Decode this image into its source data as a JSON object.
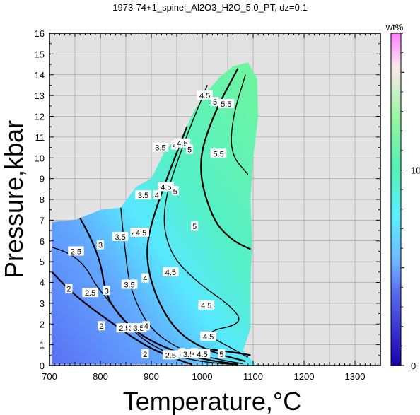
{
  "chart_data": {
    "type": "contour",
    "title": "1973-74+1_spinel_Al2O3_H2O_5.0_PT, dz=0.1",
    "xlabel": "Temperature,°C",
    "ylabel": "Pressure,kbar",
    "xlim": [
      700,
      1350
    ],
    "ylim": [
      0,
      16
    ],
    "x_ticks": [
      700,
      800,
      900,
      1000,
      1100,
      1200,
      1300
    ],
    "y_ticks": [
      0,
      1,
      2,
      3,
      4,
      5,
      6,
      7,
      8,
      9,
      10,
      11,
      12,
      13,
      14,
      15,
      16
    ],
    "grid": true,
    "colorbar": {
      "label": "wt%",
      "min": 0,
      "max": 17,
      "ticks": [
        0,
        10
      ],
      "colors": [
        "#1a00b0",
        "#5a6cf0",
        "#6fb8ff",
        "#58f0ff",
        "#55f0b0",
        "#7af59a",
        "#ffe6f0",
        "#ff80ff"
      ]
    },
    "field_boundary": [
      [
        705,
        0.05
      ],
      [
        705,
        6.9
      ],
      [
        720,
        6.95
      ],
      [
        750,
        7.0
      ],
      [
        800,
        7.5
      ],
      [
        840,
        7.6
      ],
      [
        870,
        8.6
      ],
      [
        900,
        9.0
      ],
      [
        930,
        10.5
      ],
      [
        960,
        11.0
      ],
      [
        985,
        12.3
      ],
      [
        1010,
        13.2
      ],
      [
        1035,
        13.9
      ],
      [
        1060,
        14.4
      ],
      [
        1090,
        14.6
      ],
      [
        1108,
        13.8
      ],
      [
        1110,
        12.0
      ],
      [
        1100,
        10.0
      ],
      [
        1095,
        8.0
      ],
      [
        1098,
        6.0
      ],
      [
        1095,
        4.0
      ],
      [
        1095,
        1.8
      ],
      [
        1080,
        0.7
      ],
      [
        1105,
        0.05
      ]
    ],
    "contours": [
      {
        "level": 2,
        "points": [
          [
            705,
            4.5
          ],
          [
            740,
            3.6
          ],
          [
            780,
            2.8
          ],
          [
            820,
            2.1
          ],
          [
            860,
            1.4
          ],
          [
            900,
            0.8
          ],
          [
            950,
            0.3
          ],
          [
            980,
            0.05
          ]
        ]
      },
      {
        "level": 2.5,
        "points": [
          [
            705,
            5.7
          ],
          [
            740,
            5.4
          ],
          [
            770,
            4.8
          ],
          [
            790,
            3.9
          ],
          [
            820,
            3.0
          ],
          [
            850,
            2.1
          ],
          [
            880,
            1.3
          ],
          [
            930,
            0.6
          ],
          [
            990,
            0.2
          ],
          [
            1060,
            0.05
          ]
        ]
      },
      {
        "level": 3,
        "points": [
          [
            760,
            7.1
          ],
          [
            780,
            6.2
          ],
          [
            800,
            5.0
          ],
          [
            810,
            3.5
          ],
          [
            830,
            2.6
          ],
          [
            870,
            1.6
          ],
          [
            930,
            0.8
          ],
          [
            1000,
            0.3
          ],
          [
            1070,
            0.05
          ]
        ]
      },
      {
        "level": 3.5,
        "points": [
          [
            840,
            7.6
          ],
          [
            845,
            6.3
          ],
          [
            850,
            5.3
          ],
          [
            855,
            4.2
          ],
          [
            870,
            3.0
          ],
          [
            900,
            1.7
          ],
          [
            960,
            0.7
          ],
          [
            1030,
            0.3
          ],
          [
            1080,
            0.08
          ]
        ]
      },
      {
        "level": 4,
        "points": [
          [
            970,
            11.5
          ],
          [
            930,
            9.0
          ],
          [
            895,
            6.5
          ],
          [
            890,
            5.0
          ],
          [
            910,
            3.2
          ],
          [
            950,
            1.6
          ],
          [
            1010,
            0.7
          ],
          [
            1085,
            0.2
          ]
        ]
      },
      {
        "level": 4.5,
        "points": [
          [
            1010,
            13.5
          ],
          [
            960,
            10.5
          ],
          [
            920,
            7.5
          ],
          [
            935,
            5.4
          ],
          [
            990,
            4.0
          ],
          [
            1060,
            2.8
          ],
          [
            1080,
            2.0
          ],
          [
            1000,
            1.6
          ],
          [
            1060,
            0.8
          ],
          [
            1090,
            0.4
          ]
        ]
      },
      {
        "level": 5,
        "points": [
          [
            1070,
            14.3
          ],
          [
            1020,
            12.0
          ],
          [
            990,
            9.6
          ],
          [
            1020,
            7.0
          ],
          [
            1060,
            6.0
          ],
          [
            1095,
            5.6
          ]
        ]
      },
      {
        "level": 5,
        "points": [
          [
            1010,
            0.8
          ],
          [
            1070,
            0.6
          ],
          [
            1095,
            0.5
          ]
        ]
      },
      {
        "level": 5.5,
        "points": [
          [
            1085,
            14.0
          ],
          [
            1060,
            12.0
          ],
          [
            1055,
            10.2
          ],
          [
            1090,
            9.2
          ]
        ]
      }
    ],
    "contour_labels": [
      {
        "text": "2.5",
        "x": 752,
        "y": 5.5
      },
      {
        "text": "2",
        "x": 738,
        "y": 3.7
      },
      {
        "text": "2.5",
        "x": 780,
        "y": 3.5
      },
      {
        "text": "2",
        "x": 802,
        "y": 1.9
      },
      {
        "text": "3",
        "x": 800,
        "y": 5.8
      },
      {
        "text": "3",
        "x": 812,
        "y": 3.6
      },
      {
        "text": "2.5",
        "x": 847,
        "y": 1.8
      },
      {
        "text": "3.5",
        "x": 839,
        "y": 6.2
      },
      {
        "text": "3.5",
        "x": 857,
        "y": 3.9
      },
      {
        "text": "4",
        "x": 866,
        "y": 6.4
      },
      {
        "text": "4",
        "x": 888,
        "y": 4.2
      },
      {
        "text": "4.5",
        "x": 880,
        "y": 6.4
      },
      {
        "text": "3",
        "x": 860,
        "y": 1.8
      },
      {
        "text": "3.5",
        "x": 875,
        "y": 1.8
      },
      {
        "text": "4",
        "x": 890,
        "y": 1.9
      },
      {
        "text": "3.5",
        "x": 884,
        "y": 8.2
      },
      {
        "text": "4",
        "x": 911,
        "y": 8.2
      },
      {
        "text": "4.5",
        "x": 929,
        "y": 8.6
      },
      {
        "text": "5",
        "x": 947,
        "y": 8.4
      },
      {
        "text": "4.5",
        "x": 938,
        "y": 4.5
      },
      {
        "text": "5",
        "x": 985,
        "y": 6.7
      },
      {
        "text": "4.5",
        "x": 1008,
        "y": 2.9
      },
      {
        "text": "4.5",
        "x": 1012,
        "y": 1.4
      },
      {
        "text": "3.5",
        "x": 918,
        "y": 10.5
      },
      {
        "text": "4",
        "x": 946,
        "y": 10.6
      },
      {
        "text": "4.5",
        "x": 961,
        "y": 10.7
      },
      {
        "text": "5",
        "x": 975,
        "y": 10.4
      },
      {
        "text": "5.5",
        "x": 1032,
        "y": 10.2
      },
      {
        "text": "4.5",
        "x": 1005,
        "y": 13.0
      },
      {
        "text": "5",
        "x": 1025,
        "y": 12.7
      },
      {
        "text": "5.5",
        "x": 1047,
        "y": 12.6
      },
      {
        "text": "2",
        "x": 888,
        "y": 0.55
      },
      {
        "text": "2.5",
        "x": 938,
        "y": 0.5
      },
      {
        "text": "3",
        "x": 960,
        "y": 0.6
      },
      {
        "text": "3.5",
        "x": 973,
        "y": 0.55
      },
      {
        "text": "4",
        "x": 985,
        "y": 0.6
      },
      {
        "text": "4.5",
        "x": 1000,
        "y": 0.55
      },
      {
        "text": "5",
        "x": 1038,
        "y": 0.55
      }
    ]
  }
}
